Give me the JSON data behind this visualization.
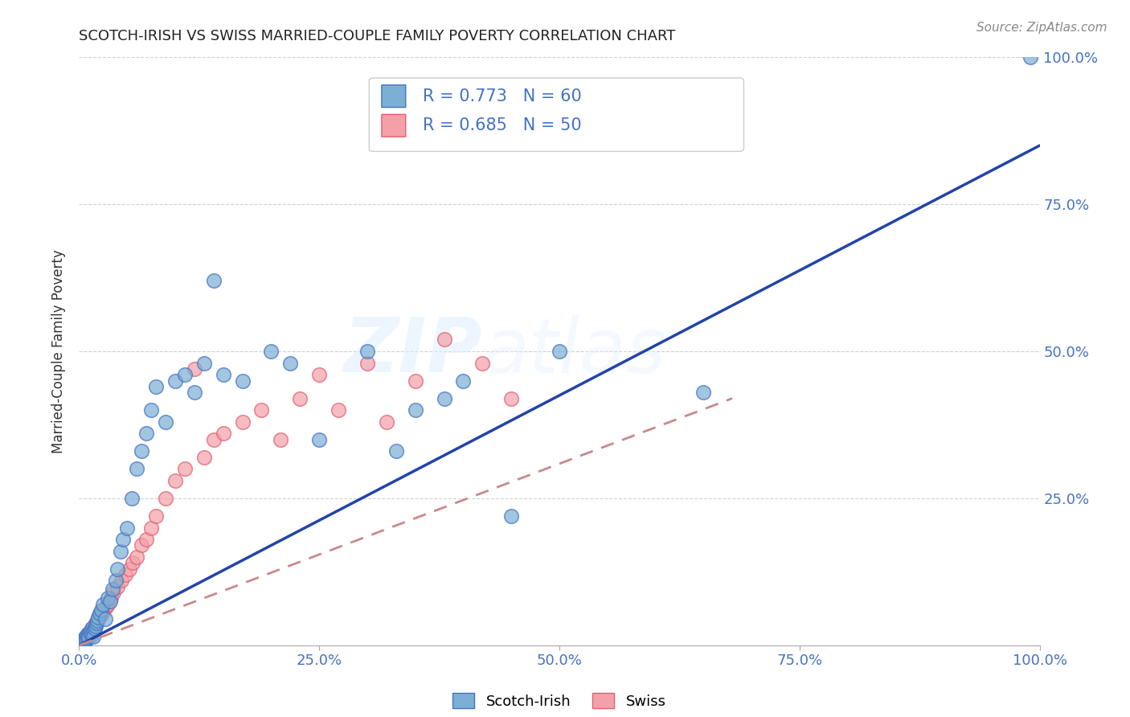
{
  "title": "SCOTCH-IRISH VS SWISS MARRIED-COUPLE FAMILY POVERTY CORRELATION CHART",
  "source": "Source: ZipAtlas.com",
  "ylabel": "Married-Couple Family Poverty",
  "xlim": [
    0,
    1
  ],
  "ylim": [
    0,
    1
  ],
  "xticks": [
    0,
    0.25,
    0.5,
    0.75,
    1.0
  ],
  "yticks": [
    0,
    0.25,
    0.5,
    0.75,
    1.0
  ],
  "xticklabels": [
    "0.0%",
    "25.0%",
    "50.0%",
    "75.0%",
    "100.0%"
  ],
  "yticklabels_right": [
    "",
    "25.0%",
    "50.0%",
    "75.0%",
    "100.0%"
  ],
  "scotch_irish_color": "#7BAFD4",
  "scotch_irish_edge": "#4472C4",
  "swiss_color": "#F4A0A8",
  "swiss_edge": "#E06070",
  "si_line_color": "#2244AA",
  "sw_line_color": "#CC8888",
  "grid_color": "#CCCCCC",
  "tick_label_color": "#4472C4",
  "scotch_irish_R": 0.773,
  "scotch_irish_N": 60,
  "swiss_R": 0.685,
  "swiss_N": 50,
  "si_line_x0": 0.0,
  "si_line_y0": 0.0,
  "si_line_x1": 1.0,
  "si_line_y1": 0.85,
  "sw_line_x0": 0.0,
  "sw_line_y0": 0.0,
  "sw_line_x1": 0.68,
  "sw_line_y1": 0.42,
  "scotch_irish_pts_x": [
    0.003,
    0.004,
    0.005,
    0.006,
    0.006,
    0.007,
    0.007,
    0.008,
    0.009,
    0.01,
    0.01,
    0.011,
    0.012,
    0.013,
    0.014,
    0.015,
    0.015,
    0.016,
    0.017,
    0.018,
    0.019,
    0.02,
    0.021,
    0.023,
    0.025,
    0.027,
    0.03,
    0.032,
    0.035,
    0.038,
    0.04,
    0.043,
    0.046,
    0.05,
    0.055,
    0.06,
    0.065,
    0.07,
    0.075,
    0.08,
    0.09,
    0.1,
    0.11,
    0.12,
    0.13,
    0.14,
    0.15,
    0.17,
    0.2,
    0.22,
    0.25,
    0.3,
    0.33,
    0.35,
    0.38,
    0.4,
    0.45,
    0.5,
    0.65,
    0.99
  ],
  "scotch_irish_pts_y": [
    0.008,
    0.005,
    0.01,
    0.012,
    0.007,
    0.015,
    0.01,
    0.018,
    0.012,
    0.02,
    0.015,
    0.022,
    0.025,
    0.018,
    0.03,
    0.025,
    0.015,
    0.028,
    0.032,
    0.038,
    0.042,
    0.048,
    0.055,
    0.06,
    0.07,
    0.045,
    0.08,
    0.075,
    0.095,
    0.11,
    0.13,
    0.16,
    0.18,
    0.2,
    0.25,
    0.3,
    0.33,
    0.36,
    0.4,
    0.44,
    0.38,
    0.45,
    0.46,
    0.43,
    0.48,
    0.62,
    0.46,
    0.45,
    0.5,
    0.48,
    0.35,
    0.5,
    0.33,
    0.4,
    0.42,
    0.45,
    0.22,
    0.5,
    0.43,
    1.0
  ],
  "swiss_pts_x": [
    0.004,
    0.005,
    0.006,
    0.007,
    0.008,
    0.009,
    0.01,
    0.011,
    0.012,
    0.013,
    0.015,
    0.016,
    0.018,
    0.02,
    0.022,
    0.024,
    0.026,
    0.028,
    0.03,
    0.033,
    0.036,
    0.04,
    0.044,
    0.048,
    0.052,
    0.056,
    0.06,
    0.065,
    0.07,
    0.075,
    0.08,
    0.09,
    0.1,
    0.11,
    0.12,
    0.13,
    0.14,
    0.15,
    0.17,
    0.19,
    0.21,
    0.23,
    0.25,
    0.27,
    0.3,
    0.32,
    0.35,
    0.38,
    0.42,
    0.45
  ],
  "swiss_pts_y": [
    0.005,
    0.008,
    0.01,
    0.012,
    0.015,
    0.018,
    0.02,
    0.022,
    0.025,
    0.028,
    0.03,
    0.035,
    0.04,
    0.045,
    0.05,
    0.055,
    0.06,
    0.065,
    0.07,
    0.08,
    0.09,
    0.1,
    0.11,
    0.12,
    0.13,
    0.14,
    0.15,
    0.17,
    0.18,
    0.2,
    0.22,
    0.25,
    0.28,
    0.3,
    0.47,
    0.32,
    0.35,
    0.36,
    0.38,
    0.4,
    0.35,
    0.42,
    0.46,
    0.4,
    0.48,
    0.38,
    0.45,
    0.52,
    0.48,
    0.42
  ]
}
